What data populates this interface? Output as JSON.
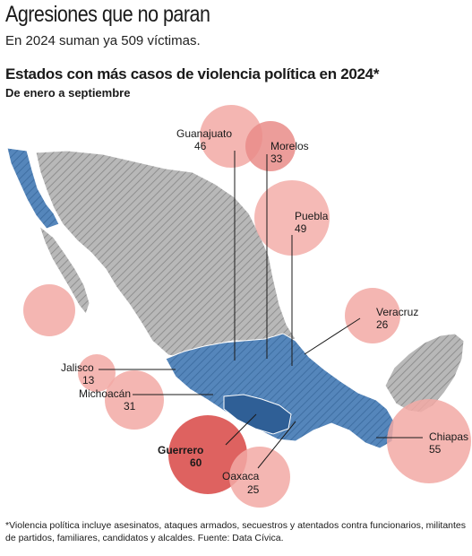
{
  "headline": "Agresiones que no paran",
  "subheadline": "En 2024 suman ya 509 víctimas.",
  "chart_title": "Estados con más casos de violencia política en 2024*",
  "chart_subtitle": "De enero a septiembre",
  "footnote": "*Violencia política incluye asesinatos, ataques armados, secuestros y atentados contra funcionarios, militantes de partidos, familiares, candidatos y alcaldes. Fuente: Data Cívica.",
  "colors": {
    "highlighted_state": "#4f80b6",
    "other_state": "#b3b3b3",
    "bubble": "#f2a9a4",
    "bubble_top": "#dc5a57",
    "leader_line": "#1a1a1a"
  },
  "chart_data": {
    "type": "bubble-map",
    "title": "Estados con más casos de violencia política en 2024*",
    "subtitle": "De enero a septiembre",
    "states": [
      {
        "name": "Guerrero",
        "value": 60,
        "highlight": true
      },
      {
        "name": "Chiapas",
        "value": 55
      },
      {
        "name": "Puebla",
        "value": 49
      },
      {
        "name": "Guanajuato",
        "value": 46
      },
      {
        "name": "Morelos",
        "value": 33
      },
      {
        "name": "Michoacán",
        "value": 31
      },
      {
        "name": "Veracruz",
        "value": 26
      },
      {
        "name": "Oaxaca",
        "value": 25
      },
      {
        "name": "Jalisco",
        "value": 13
      }
    ]
  }
}
